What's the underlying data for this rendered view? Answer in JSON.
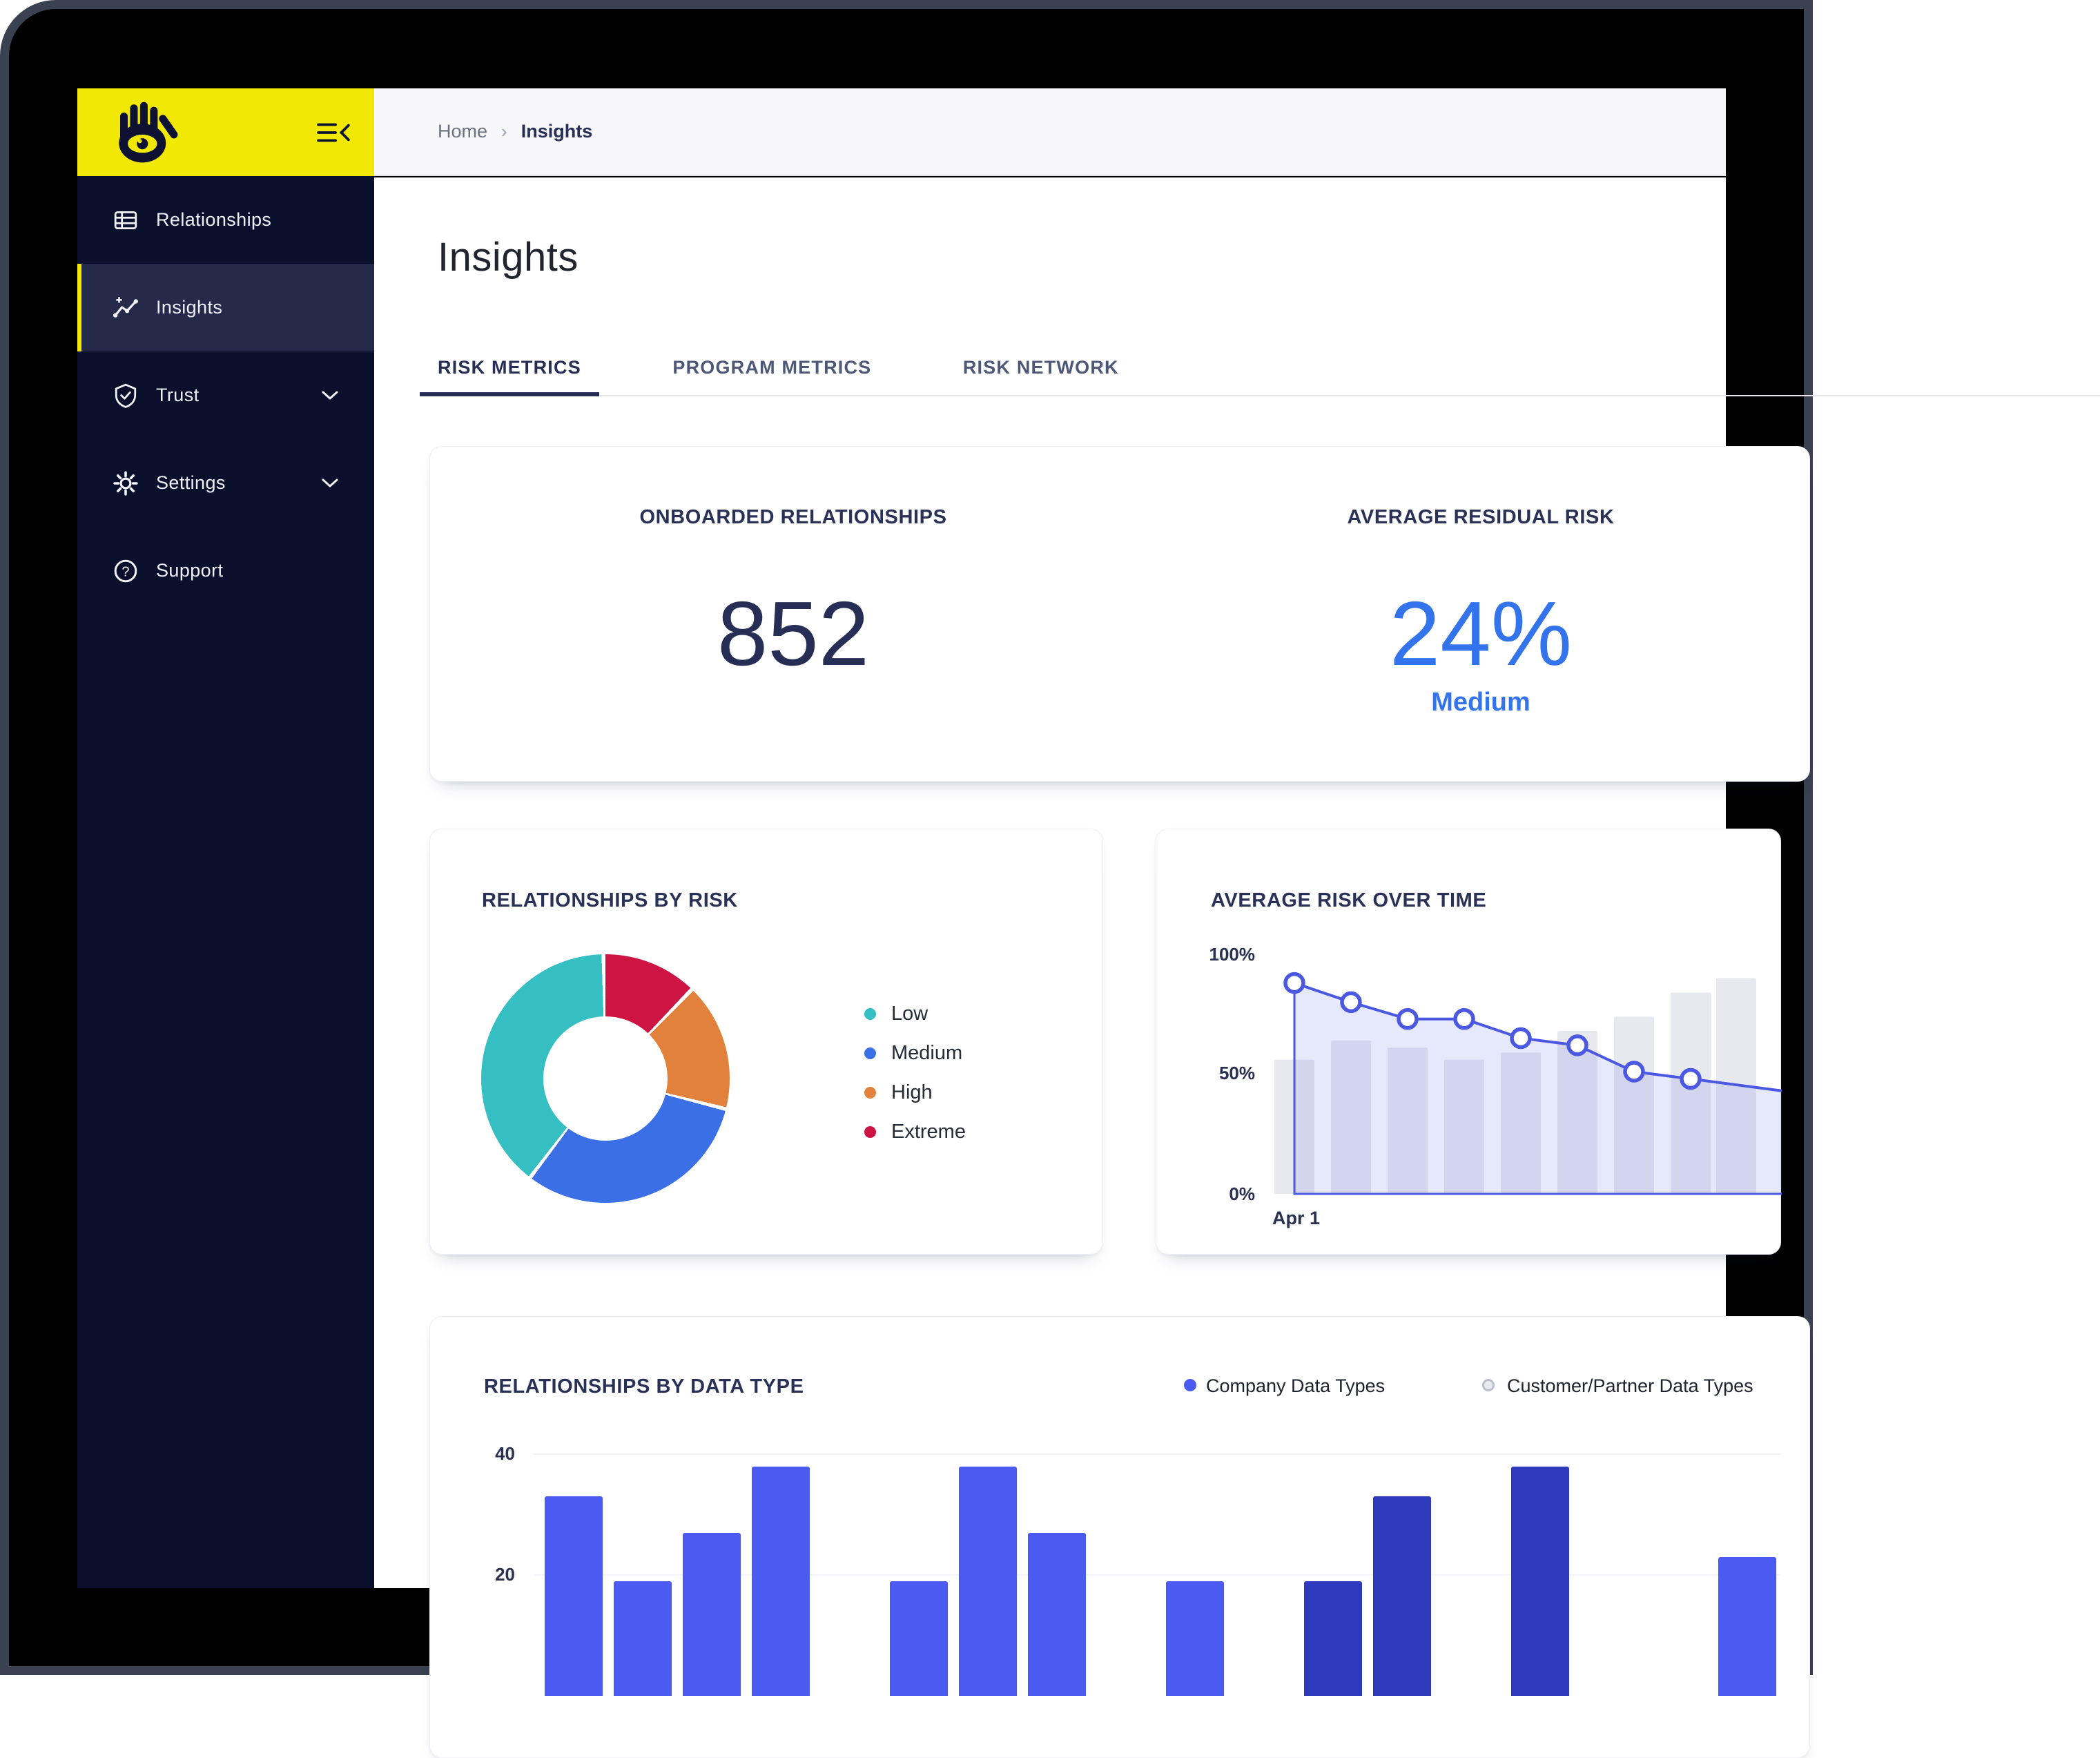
{
  "colors": {
    "brand_yellow": "#F1E806",
    "sidebar_bg": "#0A0F2C",
    "sidebar_selected": "#252A4A",
    "navy_text": "#272E55",
    "accent_blue": "#3374EC",
    "line_blue": "#4A58E2",
    "bar_bright_blue": "#4B5AF1",
    "bar_dark_blue": "#2C3ABB",
    "teal": "#36BFC3",
    "orange": "#E2813C",
    "crimson": "#CE1442"
  },
  "sidebar": {
    "logo_icon": "hand-eye-icon",
    "collapse_icon": "collapse-menu-icon",
    "items": [
      {
        "label": "Relationships",
        "icon": "table-icon",
        "selected": false,
        "chevron": false
      },
      {
        "label": "Insights",
        "icon": "trend-icon",
        "selected": true,
        "chevron": false
      },
      {
        "label": "Trust",
        "icon": "shield-check-icon",
        "selected": false,
        "chevron": true
      },
      {
        "label": "Settings",
        "icon": "gear-icon",
        "selected": false,
        "chevron": true
      },
      {
        "label": "Support",
        "icon": "help-circle-icon",
        "selected": false,
        "chevron": false
      }
    ]
  },
  "breadcrumb": {
    "home": "Home",
    "separator": "›",
    "current": "Insights"
  },
  "page": {
    "title": "Insights"
  },
  "tabs": [
    {
      "label": "RISK METRICS",
      "active": true
    },
    {
      "label": "PROGRAM METRICS",
      "active": false
    },
    {
      "label": "RISK NETWORK",
      "active": false
    }
  ],
  "summary": {
    "onboarded_label": "ONBOARDED RELATIONSHIPS",
    "onboarded_value": "852",
    "residual_label": "AVERAGE RESIDUAL RISK",
    "residual_value": "24%",
    "residual_level": "Medium"
  },
  "chart_data": [
    {
      "type": "pie",
      "title": "RELATIONSHIPS BY RISK",
      "donut_hole_pct": 50,
      "segments": [
        {
          "label": "Extreme",
          "pct": 12.5,
          "color": "#CE1442"
        },
        {
          "label": "High",
          "pct": 16.7,
          "color": "#E2813C"
        },
        {
          "label": "Medium",
          "pct": 31.4,
          "color": "#3A6FE5"
        },
        {
          "label": "Low",
          "pct": 39.4,
          "color": "#36BFC3"
        }
      ],
      "legend": [
        "Low",
        "Medium",
        "High",
        "Extreme"
      ],
      "legend_position": "right"
    },
    {
      "type": "line",
      "title": "AVERAGE RISK OVER TIME",
      "ylabels": [
        "100%",
        "50%",
        "0%"
      ],
      "ylim": [
        0,
        100
      ],
      "x_first_label": "Apr 1",
      "points_pct": [
        {
          "x": 200,
          "v": 88
        },
        {
          "x": 282,
          "v": 80
        },
        {
          "x": 364,
          "v": 73
        },
        {
          "x": 446,
          "v": 73
        },
        {
          "x": 528,
          "v": 65
        },
        {
          "x": 610,
          "v": 62
        },
        {
          "x": 692,
          "v": 51
        },
        {
          "x": 774,
          "v": 48
        },
        {
          "x": 906,
          "v": 43,
          "marker": false
        }
      ],
      "bg_bars_pct": [
        {
          "x": 200,
          "v": 56
        },
        {
          "x": 282,
          "v": 64
        },
        {
          "x": 364,
          "v": 61
        },
        {
          "x": 446,
          "v": 56
        },
        {
          "x": 528,
          "v": 59
        },
        {
          "x": 610,
          "v": 68
        },
        {
          "x": 692,
          "v": 74
        },
        {
          "x": 774,
          "v": 84
        },
        {
          "x": 840,
          "v": 90
        }
      ],
      "line_color": "#4A58E2",
      "fill_color": "rgba(99,112,232,0.16)",
      "bg_bar_color": "#E7E9EF",
      "grid": false
    },
    {
      "type": "bar",
      "title": "RELATIONSHIPS BY DATA TYPE",
      "yticks": [
        "40",
        "20"
      ],
      "ylim": [
        0,
        40
      ],
      "legend": [
        {
          "label": "Company Data Types",
          "style": "solid",
          "color": "#4B5AF1"
        },
        {
          "label": "Customer/Partner Data Types",
          "style": "outline",
          "ring": "#B9BFCC",
          "fill": "#E9EBF0"
        }
      ],
      "bar_colors": {
        "bright": "#4B5AF1",
        "dark": "#2C3ABB"
      },
      "bars": [
        {
          "slot": 0,
          "value": 33,
          "color": "bright"
        },
        {
          "slot": 1,
          "value": 19,
          "color": "bright"
        },
        {
          "slot": 2,
          "value": 27,
          "color": "bright"
        },
        {
          "slot": 3,
          "value": 38,
          "color": "bright"
        },
        {
          "slot": 5,
          "value": 19,
          "color": "bright"
        },
        {
          "slot": 6,
          "value": 38,
          "color": "bright"
        },
        {
          "slot": 7,
          "value": 27,
          "color": "bright"
        },
        {
          "slot": 9,
          "value": 19,
          "color": "bright"
        },
        {
          "slot": 11,
          "value": 19,
          "color": "dark"
        },
        {
          "slot": 12,
          "value": 33,
          "color": "dark"
        },
        {
          "slot": 14,
          "value": 38,
          "color": "dark"
        },
        {
          "slot": 17,
          "value": 23,
          "color": "bright"
        }
      ]
    }
  ]
}
